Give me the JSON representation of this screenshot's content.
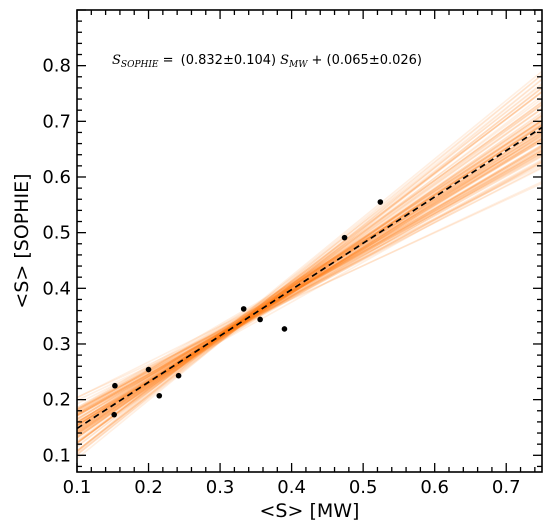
{
  "chart_data": {
    "type": "scatter",
    "xlabel": "<S> [MW]",
    "ylabel": "<S> [SOPHIE]",
    "xlim": [
      0.1,
      0.75
    ],
    "ylim": [
      0.07,
      0.9
    ],
    "xticks": [
      "0.1",
      "0.2",
      "0.3",
      "0.4",
      "0.5",
      "0.6",
      "0.7"
    ],
    "yticks": [
      "0.1",
      "0.2",
      "0.3",
      "0.4",
      "0.5",
      "0.6",
      "0.7",
      "0.8"
    ],
    "grid": false,
    "points": [
      {
        "x": 0.153,
        "y": 0.225
      },
      {
        "x": 0.152,
        "y": 0.173
      },
      {
        "x": 0.2,
        "y": 0.254
      },
      {
        "x": 0.215,
        "y": 0.207
      },
      {
        "x": 0.242,
        "y": 0.243
      },
      {
        "x": 0.333,
        "y": 0.363
      },
      {
        "x": 0.356,
        "y": 0.344
      },
      {
        "x": 0.39,
        "y": 0.327
      },
      {
        "x": 0.474,
        "y": 0.491
      },
      {
        "x": 0.524,
        "y": 0.555
      }
    ],
    "fit": {
      "slope": 0.832,
      "intercept": 0.065,
      "style": "dashed",
      "color": "#000000"
    },
    "samples_color": "#ff7f0e",
    "annotation": {
      "lhs": "S",
      "lhs_sub": "SOPHIE",
      "eq": " = ",
      "slope_text": "(0.832±0.104)",
      "rhs": "S",
      "rhs_sub": "MW",
      "tail": "+ (0.065±0.026)"
    }
  }
}
